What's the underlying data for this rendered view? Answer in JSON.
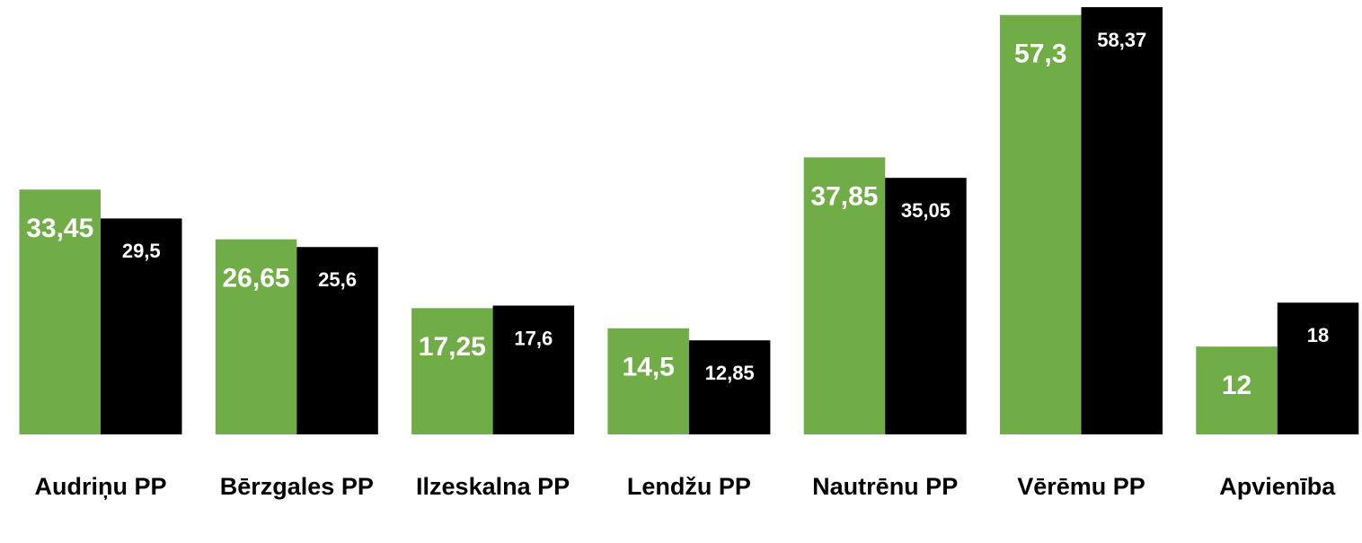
{
  "chart_data": {
    "type": "bar",
    "categories": [
      "Audriņu PP",
      "Bērzgales PP",
      "Ilzeskalna PP",
      "Lendžu PP",
      "Nautrēnu PP",
      "Vērēmu PP",
      "Apvienība"
    ],
    "series": [
      {
        "color": "#70ad47",
        "values": [
          33.45,
          26.65,
          17.25,
          14.5,
          37.85,
          57.3,
          12
        ],
        "value_labels": [
          "33,45",
          "26,65",
          "17,25",
          "14,5",
          "37,85",
          "57,3",
          "12"
        ]
      },
      {
        "color": "#000000",
        "values": [
          29.5,
          25.6,
          17.6,
          12.85,
          35.05,
          58.37,
          18
        ],
        "value_labels": [
          "29,5",
          "25,6",
          "17,6",
          "12,85",
          "35,05",
          "58,37",
          "18"
        ]
      }
    ],
    "ylim": [
      0,
      60
    ]
  }
}
